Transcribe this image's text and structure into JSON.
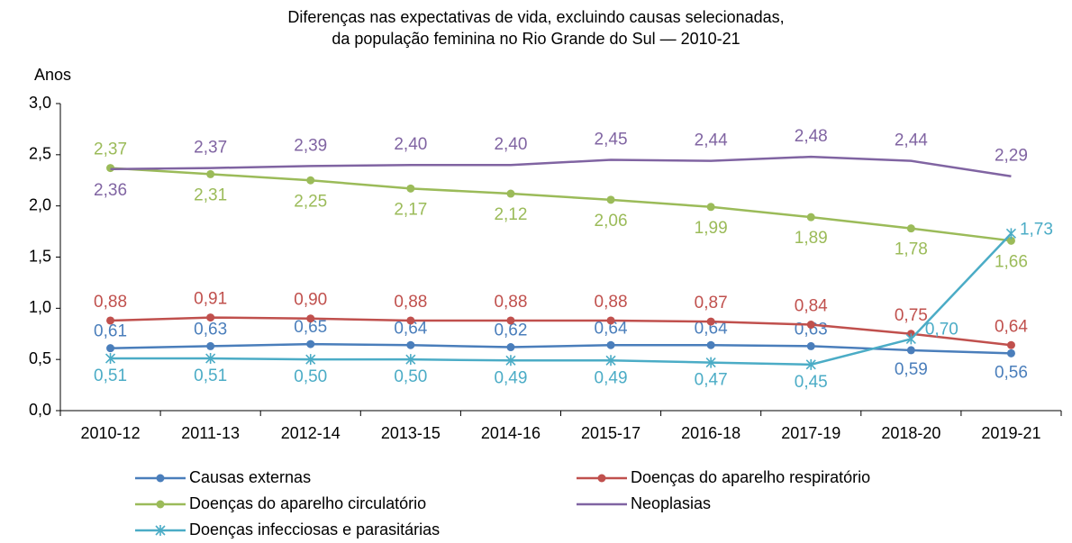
{
  "chart_data": {
    "type": "line",
    "title": [
      "Diferenças nas expectativas de vida, excluindo causas selecionadas,",
      "da população feminina no Rio Grande do Sul — 2010-21"
    ],
    "y_label": "Anos",
    "categories": [
      "2010-12",
      "2011-13",
      "2012-14",
      "2013-15",
      "2014-16",
      "2015-17",
      "2016-18",
      "2017-19",
      "2018-20",
      "2019-21"
    ],
    "ylim": [
      0,
      3
    ],
    "yticks": [
      {
        "value": 0,
        "label": "0,0"
      },
      {
        "value": 0.5,
        "label": "0,5"
      },
      {
        "value": 1,
        "label": "1,0"
      },
      {
        "value": 1.5,
        "label": "1,5"
      },
      {
        "value": 2,
        "label": "2,0"
      },
      {
        "value": 2.5,
        "label": "2,5"
      },
      {
        "value": 3,
        "label": "3,0"
      }
    ],
    "series": [
      {
        "name": "Causas externas",
        "color": "#4a7ebb",
        "marker": "circle",
        "values": [
          0.61,
          0.63,
          0.65,
          0.64,
          0.62,
          0.64,
          0.64,
          0.63,
          0.59,
          0.56
        ],
        "value_labels": [
          "0,61",
          "0,63",
          "0,65",
          "0,64",
          "0,62",
          "0,64",
          "0,64",
          "0,63",
          "0,59",
          "0,56"
        ]
      },
      {
        "name": "Doenças do aparelho respiratório",
        "color": "#c0504d",
        "marker": "circle",
        "values": [
          0.88,
          0.91,
          0.9,
          0.88,
          0.88,
          0.88,
          0.87,
          0.84,
          0.75,
          0.64
        ],
        "value_labels": [
          "0,88",
          "0,91",
          "0,90",
          "0,88",
          "0,88",
          "0,88",
          "0,87",
          "0,84",
          "0,75",
          "0,64"
        ]
      },
      {
        "name": "Doenças do aparelho circulatório",
        "color": "#9bbb59",
        "marker": "circle",
        "values": [
          2.37,
          2.31,
          2.25,
          2.17,
          2.12,
          2.06,
          1.99,
          1.89,
          1.78,
          1.66
        ],
        "value_labels": [
          "2,37",
          "2,31",
          "2,25",
          "2,17",
          "2,12",
          "2,06",
          "1,99",
          "1,89",
          "1,78",
          "1,66"
        ]
      },
      {
        "name": "Neoplasias",
        "color": "#8064a2",
        "marker": "none",
        "values": [
          2.36,
          2.37,
          2.39,
          2.4,
          2.4,
          2.45,
          2.44,
          2.48,
          2.44,
          2.29
        ],
        "value_labels": [
          "2,36",
          "2,37",
          "2,39",
          "2,40",
          "2,40",
          "2,45",
          "2,44",
          "2,48",
          "2,44",
          "2,29"
        ]
      },
      {
        "name": "Doenças infecciosas e parasitárias",
        "color": "#4bacc6",
        "marker": "star",
        "values": [
          0.51,
          0.51,
          0.5,
          0.5,
          0.49,
          0.49,
          0.47,
          0.45,
          0.7,
          1.73
        ],
        "value_labels": [
          "0,51",
          "0,51",
          "0,50",
          "0,50",
          "0,49",
          "0,49",
          "0,47",
          "0,45",
          "0,70",
          "1,73"
        ]
      }
    ]
  }
}
